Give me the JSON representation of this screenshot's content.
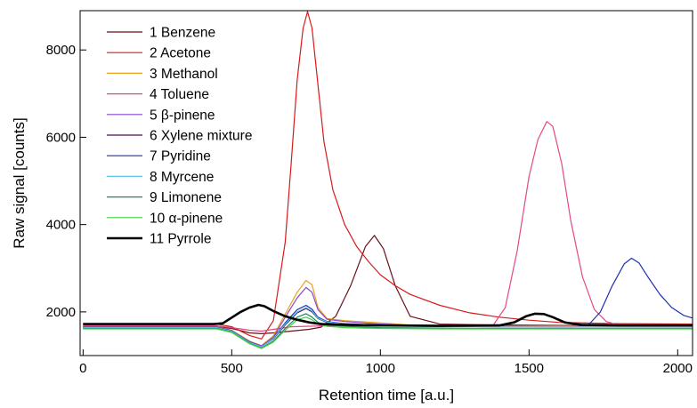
{
  "chart_data": {
    "type": "line",
    "title": "",
    "xlabel": "Retention time [a.u.]",
    "ylabel": "Raw signal [counts]",
    "xlim": [
      -10,
      2050
    ],
    "ylim": [
      1000,
      8900
    ],
    "xticks": [
      0,
      500,
      1000,
      1500,
      2000
    ],
    "yticks": [
      2000,
      4000,
      6000,
      8000
    ],
    "xtick_labels": [
      "0",
      "500",
      "1000",
      "1500",
      "2000"
    ],
    "ytick_labels": [
      "2000",
      "4000",
      "6000",
      "8000"
    ],
    "grid": false,
    "legend_position": "top-left",
    "series": [
      {
        "name": "1 Benzene",
        "color": "#6b0f1a",
        "width": 1.2,
        "x": [
          0,
          450,
          500,
          560,
          600,
          640,
          700,
          760,
          800,
          850,
          900,
          950,
          980,
          1010,
          1050,
          1100,
          1200,
          1400,
          1600,
          1800,
          2050
        ],
        "y": [
          1660,
          1660,
          1620,
          1520,
          1500,
          1520,
          1560,
          1600,
          1650,
          1900,
          2600,
          3500,
          3750,
          3450,
          2600,
          1900,
          1720,
          1700,
          1690,
          1690,
          1690
        ]
      },
      {
        "name": "2 Acetone",
        "color": "#d91a1a",
        "width": 1.2,
        "x": [
          0,
          450,
          500,
          560,
          600,
          640,
          680,
          700,
          720,
          740,
          755,
          770,
          790,
          810,
          840,
          880,
          920,
          960,
          1000,
          1050,
          1100,
          1200,
          1300,
          1400,
          1500,
          1600,
          1800,
          2050
        ],
        "y": [
          1720,
          1720,
          1660,
          1460,
          1380,
          1800,
          3600,
          5400,
          7300,
          8500,
          8880,
          8500,
          7200,
          5900,
          4800,
          4000,
          3500,
          3150,
          2850,
          2600,
          2400,
          2150,
          1980,
          1880,
          1810,
          1760,
          1730,
          1720
        ]
      },
      {
        "name": "3 Methanol",
        "color": "#e8a21c",
        "width": 1.2,
        "x": [
          0,
          450,
          500,
          560,
          600,
          640,
          680,
          720,
          750,
          770,
          790,
          820,
          880,
          1000,
          1100,
          1200,
          1400,
          1600,
          1800,
          2050
        ],
        "y": [
          1660,
          1660,
          1580,
          1330,
          1230,
          1450,
          1950,
          2450,
          2720,
          2620,
          2100,
          1850,
          1800,
          1750,
          1700,
          1690,
          1680,
          1680,
          1680,
          1680
        ]
      },
      {
        "name": "4 Toluene",
        "color": "#e6478a",
        "width": 1.2,
        "x": [
          0,
          450,
          500,
          560,
          600,
          640,
          700,
          800,
          1000,
          1200,
          1380,
          1420,
          1460,
          1500,
          1530,
          1560,
          1580,
          1610,
          1640,
          1680,
          1720,
          1760,
          1800,
          2050
        ],
        "y": [
          1680,
          1680,
          1640,
          1580,
          1560,
          1600,
          1660,
          1680,
          1680,
          1680,
          1700,
          2100,
          3400,
          5100,
          5950,
          6360,
          6250,
          5400,
          4100,
          2800,
          2050,
          1780,
          1700,
          1690
        ]
      },
      {
        "name": "5 β-pinene",
        "color": "#8e44d1",
        "width": 1.2,
        "x": [
          0,
          450,
          500,
          560,
          600,
          640,
          680,
          720,
          750,
          770,
          790,
          820,
          880,
          1000,
          1100,
          1200,
          1400,
          1600,
          1800,
          2050
        ],
        "y": [
          1650,
          1650,
          1570,
          1320,
          1220,
          1420,
          1880,
          2320,
          2560,
          2450,
          2050,
          1830,
          1780,
          1720,
          1690,
          1680,
          1670,
          1670,
          1670,
          1670
        ]
      },
      {
        "name": "6 Xylene mixture",
        "color": "#4a0a4f",
        "width": 1.2,
        "x": [
          0,
          450,
          500,
          560,
          600,
          640,
          680,
          720,
          750,
          770,
          790,
          820,
          880,
          1000,
          1200,
          1400,
          1600,
          1800,
          2050
        ],
        "y": [
          1640,
          1640,
          1560,
          1300,
          1200,
          1380,
          1700,
          1980,
          2080,
          2000,
          1850,
          1760,
          1720,
          1680,
          1670,
          1660,
          1660,
          1660,
          1660
        ]
      },
      {
        "name": "7 Pyridine",
        "color": "#1f2fb3",
        "width": 1.2,
        "x": [
          0,
          450,
          500,
          560,
          600,
          640,
          680,
          720,
          750,
          770,
          790,
          820,
          880,
          1000,
          1200,
          1400,
          1600,
          1650,
          1700,
          1740,
          1780,
          1820,
          1845,
          1870,
          1900,
          1940,
          1980,
          2020,
          2050
        ],
        "y": [
          1650,
          1650,
          1570,
          1310,
          1200,
          1400,
          1750,
          2050,
          2150,
          2060,
          1880,
          1780,
          1730,
          1690,
          1680,
          1670,
          1660,
          1660,
          1700,
          2000,
          2600,
          3100,
          3230,
          3120,
          2800,
          2400,
          2100,
          1920,
          1860
        ]
      },
      {
        "name": "8 Myrcene",
        "color": "#5fc4e8",
        "width": 1.2,
        "x": [
          0,
          450,
          500,
          560,
          600,
          640,
          680,
          720,
          750,
          770,
          790,
          820,
          880,
          1000,
          1200,
          1400,
          1600,
          1800,
          2050
        ],
        "y": [
          1640,
          1640,
          1560,
          1300,
          1200,
          1390,
          1720,
          2000,
          2100,
          2020,
          1860,
          1770,
          1720,
          1680,
          1670,
          1660,
          1660,
          1660,
          1660
        ]
      },
      {
        "name": "9 Limonene",
        "color": "#1a8a5a",
        "width": 1.2,
        "x": [
          0,
          450,
          500,
          560,
          600,
          640,
          680,
          720,
          750,
          770,
          790,
          820,
          880,
          1000,
          1200,
          1400,
          1600,
          1800,
          2050
        ],
        "y": [
          1620,
          1620,
          1540,
          1280,
          1170,
          1330,
          1620,
          1880,
          1960,
          1880,
          1760,
          1700,
          1670,
          1640,
          1630,
          1620,
          1620,
          1620,
          1620
        ]
      },
      {
        "name": "10 α-pinene",
        "color": "#3fd43f",
        "width": 1.2,
        "x": [
          0,
          450,
          500,
          560,
          600,
          640,
          680,
          720,
          750,
          770,
          790,
          820,
          880,
          1000,
          1200,
          1400,
          1600,
          1800,
          2050
        ],
        "y": [
          1610,
          1610,
          1530,
          1270,
          1160,
          1310,
          1580,
          1820,
          1880,
          1820,
          1720,
          1670,
          1640,
          1620,
          1610,
          1610,
          1610,
          1610,
          1610
        ]
      },
      {
        "name": "11 Pyrrole",
        "color": "#000000",
        "width": 2.6,
        "x": [
          0,
          440,
          470,
          500,
          530,
          560,
          590,
          610,
          640,
          680,
          720,
          760,
          800,
          900,
          1000,
          1200,
          1400,
          1450,
          1490,
          1520,
          1550,
          1580,
          1620,
          1680,
          1800,
          2050
        ],
        "y": [
          1720,
          1720,
          1740,
          1870,
          2000,
          2100,
          2160,
          2130,
          2020,
          1900,
          1820,
          1760,
          1720,
          1700,
          1690,
          1680,
          1690,
          1760,
          1900,
          1960,
          1950,
          1880,
          1760,
          1700,
          1690,
          1690
        ]
      }
    ]
  }
}
